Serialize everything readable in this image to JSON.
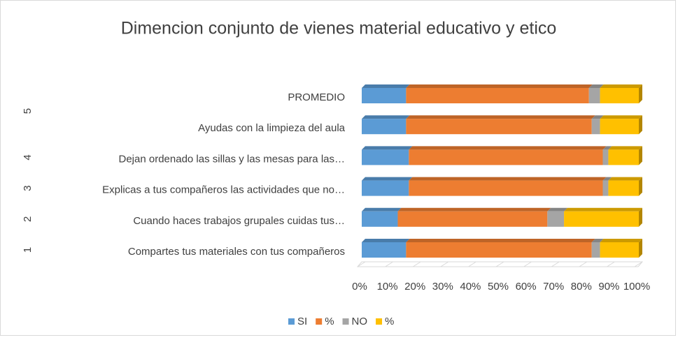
{
  "chart_data": {
    "type": "stacked_bar_horizontal_100",
    "title": "Dimencion conjunto de vienes material educativo y etico",
    "categories": [
      "Compartes tus materiales con tus compañeros",
      "Cuando haces trabajos grupales cuidas tus…",
      "Explicas a tus compañeros las actividades que no…",
      "Dejan ordenado las sillas y las mesas para las…",
      "Ayudas con la limpieza del aula",
      "PROMEDIO"
    ],
    "category_groups": [
      "1",
      "2",
      "3",
      "4",
      "5"
    ],
    "series": [
      {
        "name": "SI",
        "color": "#5b9bd5",
        "values": [
          16,
          13,
          17,
          17,
          16,
          16
        ]
      },
      {
        "name": "%",
        "color": "#ed7d31",
        "values": [
          67,
          54,
          70,
          70,
          67,
          66
        ]
      },
      {
        "name": "NO",
        "color": "#a5a5a5",
        "values": [
          3,
          6,
          2,
          2,
          3,
          4
        ]
      },
      {
        "name": "%",
        "color": "#ffc000",
        "values": [
          14,
          27,
          11,
          11,
          14,
          14
        ]
      }
    ],
    "xlim": [
      0,
      100
    ],
    "xticks": [
      {
        "value": 0,
        "label": "0%"
      },
      {
        "value": 10,
        "label": "10%"
      },
      {
        "value": 20,
        "label": "20%"
      },
      {
        "value": 30,
        "label": "30%"
      },
      {
        "value": 40,
        "label": "40%"
      },
      {
        "value": 50,
        "label": "50%"
      },
      {
        "value": 60,
        "label": "60%"
      },
      {
        "value": 70,
        "label": "70%"
      },
      {
        "value": 80,
        "label": "80%"
      },
      {
        "value": 90,
        "label": "90%"
      },
      {
        "value": 100,
        "label": "100%"
      }
    ],
    "legend": "bottom"
  }
}
